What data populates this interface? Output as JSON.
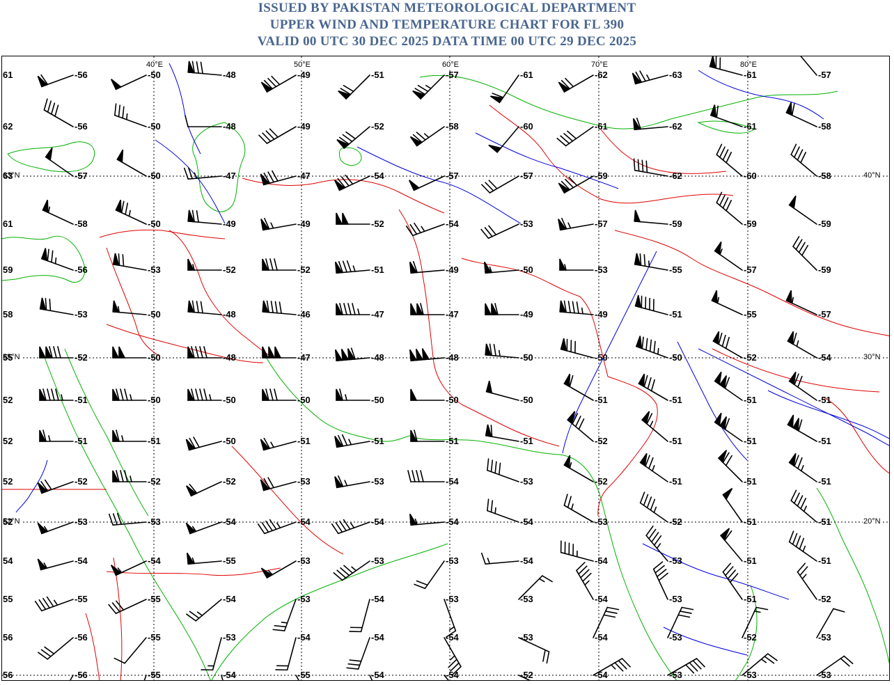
{
  "header": {
    "line1": "ISSUED BY PAKISTAN METEOROLOGICAL DEPARTMENT",
    "line2": "UPPER WIND AND TEMPERATURE CHART FOR FL 390",
    "line3": "VALID 00 UTC 30 DEC 2025 DATA TIME 00 UTC 29 DEC 2025"
  },
  "colors": {
    "title": "#4a6690",
    "border_red": "#e00000",
    "coast_green": "#00b000",
    "river_blue": "#0000e0",
    "grid": "#000000"
  },
  "grid_labels": {
    "lon": [
      "40°E",
      "50°E",
      "60°E",
      "70°E",
      "80°E"
    ],
    "lat_right": [
      "40°N",
      "30°N",
      "20°N"
    ],
    "lat_left": [
      "63°N",
      "55°N",
      "52°N"
    ]
  },
  "rows": [
    {
      "left": "61",
      "temps": [
        "-56",
        "-50",
        "-48",
        "-49",
        "-51",
        "-57",
        "-61",
        "-62",
        "-63",
        "-61",
        "-57"
      ],
      "winds": [
        [
          250,
          60
        ],
        [
          245,
          50
        ],
        [
          275,
          80
        ],
        [
          240,
          80
        ],
        [
          225,
          70
        ],
        [
          225,
          75
        ],
        [
          215,
          60
        ],
        [
          240,
          70
        ],
        [
          255,
          75
        ],
        [
          285,
          70
        ],
        [
          320,
          50
        ]
      ]
    },
    {
      "left": "62",
      "temps": [
        "-56",
        "-50",
        "-48",
        "-49",
        "-52",
        "-58",
        "-60",
        "-61",
        "-62",
        "-61",
        "-58"
      ],
      "winds": [
        [
          300,
          40
        ],
        [
          290,
          35
        ],
        [
          270,
          10
        ],
        [
          240,
          40
        ],
        [
          230,
          80
        ],
        [
          235,
          75
        ],
        [
          220,
          50
        ],
        [
          235,
          40
        ],
        [
          265,
          60
        ],
        [
          290,
          60
        ],
        [
          295,
          60
        ]
      ]
    },
    {
      "left": "63",
      "temps": [
        "-57",
        "-50",
        "-47",
        "-47",
        "-54",
        "-57",
        "-57",
        "-59",
        "-62",
        "-60",
        "-58"
      ],
      "winds": [
        [
          305,
          50
        ],
        [
          300,
          50
        ],
        [
          265,
          25
        ],
        [
          255,
          80
        ],
        [
          245,
          80
        ],
        [
          245,
          50
        ],
        [
          240,
          30
        ],
        [
          240,
          80
        ],
        [
          280,
          40
        ],
        [
          310,
          40
        ],
        [
          310,
          40
        ]
      ]
    },
    {
      "left": "61",
      "temps": [
        "-58",
        "-50",
        "-49",
        "-49",
        "-52",
        "-54",
        "-53",
        "-57",
        "-59",
        "-59",
        "-59"
      ],
      "winds": [
        [
          295,
          55
        ],
        [
          295,
          75
        ],
        [
          275,
          70
        ],
        [
          260,
          65
        ],
        [
          270,
          100
        ],
        [
          250,
          35
        ],
        [
          245,
          30
        ],
        [
          260,
          65
        ],
        [
          275,
          50
        ],
        [
          310,
          40
        ],
        [
          305,
          50
        ]
      ]
    },
    {
      "left": "59",
      "temps": [
        "-56",
        "-53",
        "-52",
        "-52",
        "-51",
        "-49",
        "-50",
        "-53",
        "-55",
        "-57",
        "-59"
      ],
      "winds": [
        [
          290,
          75
        ],
        [
          280,
          70
        ],
        [
          270,
          55
        ],
        [
          270,
          80
        ],
        [
          265,
          85
        ],
        [
          265,
          60
        ],
        [
          265,
          55
        ],
        [
          270,
          55
        ],
        [
          280,
          75
        ],
        [
          305,
          55
        ],
        [
          315,
          40
        ]
      ]
    },
    {
      "left": "58",
      "temps": [
        "-53",
        "-50",
        "-48",
        "-46",
        "-47",
        "-47",
        "-49",
        "-49",
        "-51",
        "-55",
        "-57"
      ],
      "winds": [
        [
          280,
          70
        ],
        [
          275,
          55
        ],
        [
          275,
          80
        ],
        [
          275,
          90
        ],
        [
          270,
          95
        ],
        [
          270,
          110
        ],
        [
          270,
          110
        ],
        [
          275,
          95
        ],
        [
          285,
          90
        ],
        [
          295,
          55
        ],
        [
          295,
          55
        ]
      ]
    },
    {
      "left": "55",
      "temps": [
        "-52",
        "-50",
        "-48",
        "-47",
        "-48",
        "-48",
        "-50",
        "-50",
        "-50",
        "-52",
        "-54"
      ],
      "winds": [
        [
          270,
          130
        ],
        [
          270,
          100
        ],
        [
          270,
          90
        ],
        [
          270,
          150
        ],
        [
          265,
          160
        ],
        [
          265,
          150
        ],
        [
          275,
          75
        ],
        [
          285,
          80
        ],
        [
          290,
          95
        ],
        [
          300,
          80
        ],
        [
          300,
          65
        ]
      ]
    },
    {
      "left": "52",
      "temps": [
        "-51",
        "-50",
        "-50",
        "-50",
        "-50",
        "-50",
        "-50",
        "-51",
        "-51",
        "-51",
        "-51"
      ],
      "winds": [
        [
          270,
          95
        ],
        [
          270,
          85
        ],
        [
          270,
          95
        ],
        [
          270,
          80
        ],
        [
          270,
          65
        ],
        [
          270,
          50
        ],
        [
          285,
          50
        ],
        [
          300,
          60
        ],
        [
          300,
          80
        ],
        [
          305,
          110
        ],
        [
          305,
          70
        ]
      ]
    },
    {
      "left": "52",
      "temps": [
        "-51",
        "-51",
        "-50",
        "-51",
        "-51",
        "-51",
        "-51",
        "-52",
        "-51",
        "-51",
        "-51"
      ],
      "winds": [
        [
          270,
          65
        ],
        [
          270,
          65
        ],
        [
          255,
          70
        ],
        [
          255,
          65
        ],
        [
          260,
          75
        ],
        [
          270,
          60
        ],
        [
          280,
          60
        ],
        [
          310,
          80
        ],
        [
          310,
          65
        ],
        [
          305,
          110
        ],
        [
          300,
          110
        ]
      ]
    },
    {
      "left": "52",
      "temps": [
        "-52",
        "-52",
        "-52",
        "-53",
        "-53",
        "-54",
        "-53",
        "-52",
        "-51",
        "-51",
        "-51"
      ],
      "winds": [
        [
          250,
          70
        ],
        [
          270,
          85
        ],
        [
          245,
          60
        ],
        [
          255,
          70
        ],
        [
          260,
          65
        ],
        [
          270,
          40
        ],
        [
          290,
          40
        ],
        [
          300,
          55
        ],
        [
          305,
          75
        ],
        [
          315,
          70
        ],
        [
          305,
          75
        ]
      ]
    },
    {
      "left": "52",
      "temps": [
        "-53",
        "-53",
        "-54",
        "-54",
        "-54",
        "-54",
        "-54",
        "-53",
        "-52",
        "-51",
        "-51"
      ],
      "winds": [
        [
          250,
          55
        ],
        [
          265,
          30
        ],
        [
          250,
          55
        ],
        [
          250,
          45
        ],
        [
          250,
          45
        ],
        [
          265,
          55
        ],
        [
          290,
          25
        ],
        [
          300,
          25
        ],
        [
          305,
          45
        ],
        [
          325,
          50
        ],
        [
          310,
          45
        ]
      ]
    },
    {
      "left": "54",
      "temps": [
        "-54",
        "-54",
        "-55",
        "-53",
        "-53",
        "-53",
        "-54",
        "-54",
        "-53",
        "-51",
        "-51"
      ],
      "winds": [
        [
          255,
          55
        ],
        [
          245,
          55
        ],
        [
          265,
          55
        ],
        [
          240,
          55
        ],
        [
          235,
          45
        ],
        [
          215,
          20
        ],
        [
          265,
          15
        ],
        [
          285,
          45
        ],
        [
          320,
          45
        ],
        [
          320,
          60
        ],
        [
          305,
          45
        ]
      ]
    },
    {
      "left": "55",
      "temps": [
        "-55",
        "-55",
        "-54",
        "-53",
        "-54",
        "-53",
        "-53",
        "-54",
        "-53",
        "-51",
        "-52"
      ],
      "winds": [
        [
          250,
          45
        ],
        [
          245,
          30
        ],
        [
          230,
          25
        ],
        [
          200,
          25
        ],
        [
          195,
          20
        ],
        [
          160,
          15
        ],
        [
          45,
          15
        ],
        [
          330,
          45
        ],
        [
          335,
          40
        ],
        [
          325,
          40
        ],
        [
          325,
          25
        ]
      ]
    },
    {
      "left": "56",
      "temps": [
        "-56",
        "-55",
        "-53",
        "-54",
        "-54",
        "-54",
        "-53",
        "-54",
        "-53",
        "-52",
        "-53"
      ],
      "winds": [
        [
          230,
          30
        ],
        [
          220,
          10
        ],
        [
          195,
          15
        ],
        [
          195,
          20
        ],
        [
          200,
          30
        ],
        [
          150,
          35
        ],
        [
          115,
          20
        ],
        [
          25,
          30
        ],
        [
          25,
          30
        ],
        [
          25,
          15
        ],
        [
          30,
          10
        ]
      ]
    },
    {
      "left": "56",
      "temps": [
        "-56",
        "-55",
        "-54",
        "-55",
        "-54",
        "-54",
        "-52",
        "-54",
        "-53",
        "-53",
        "-53"
      ],
      "winds": [
        [
          210,
          25
        ],
        [
          200,
          15
        ],
        [
          165,
          20
        ],
        [
          150,
          40
        ],
        [
          155,
          35
        ],
        [
          140,
          40
        ],
        [
          115,
          45
        ],
        [
          60,
          35
        ],
        [
          60,
          40
        ],
        [
          50,
          25
        ],
        [
          55,
          20
        ]
      ]
    }
  ]
}
